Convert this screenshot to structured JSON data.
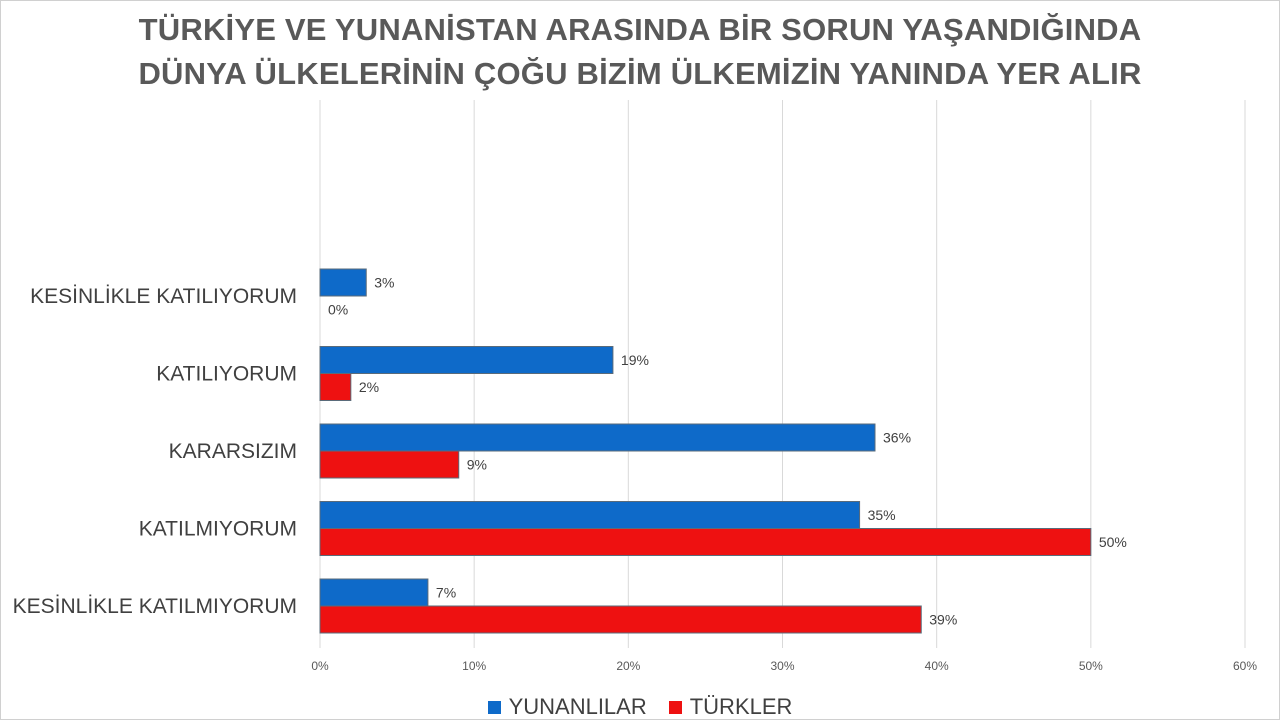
{
  "title_lines": [
    "TÜRKİYE VE YUNANİSTAN ARASINDA BİR SORUN YAŞANDIĞINDA",
    "DÜNYA ÜLKELERİNİN ÇOĞU BİZİM ÜLKEMİZİN YANINDA YER ALIR"
  ],
  "chart_data": {
    "type": "bar",
    "orientation": "horizontal",
    "title": "TÜRKİYE VE YUNANİSTAN ARASINDA BİR SORUN YAŞANDIĞINDA DÜNYA ÜLKELERİNİN ÇOĞU BİZİM ÜLKEMİZİN YANINDA YER ALIR",
    "categories": [
      "KESİNLİKLE KATILIYORUM",
      "KATILIYORUM",
      "KARARSIZIM",
      "KATILMIYORUM",
      "KESİNLİKLE KATILMIYORUM"
    ],
    "series": [
      {
        "name": "YUNANLILAR",
        "color": "#0e6ac9",
        "values": [
          3,
          19,
          36,
          35,
          7
        ],
        "labels": [
          "3%",
          "19%",
          "36%",
          "35%",
          "7%"
        ]
      },
      {
        "name": "TÜRKLER",
        "color": "#ee1111",
        "values": [
          0,
          2,
          9,
          50,
          39
        ],
        "labels": [
          "0%",
          "2%",
          "9%",
          "50%",
          "39%"
        ]
      }
    ],
    "x_ticks": [
      "0%",
      "10%",
      "20%",
      "30%",
      "40%",
      "50%",
      "60%"
    ],
    "xlim": [
      0,
      60
    ],
    "grid": true,
    "legend": "bottom"
  },
  "legend_items": [
    {
      "label": "YUNANLILAR",
      "color": "#0e6ac9"
    },
    {
      "label": "TÜRKLER",
      "color": "#ee1111"
    }
  ]
}
